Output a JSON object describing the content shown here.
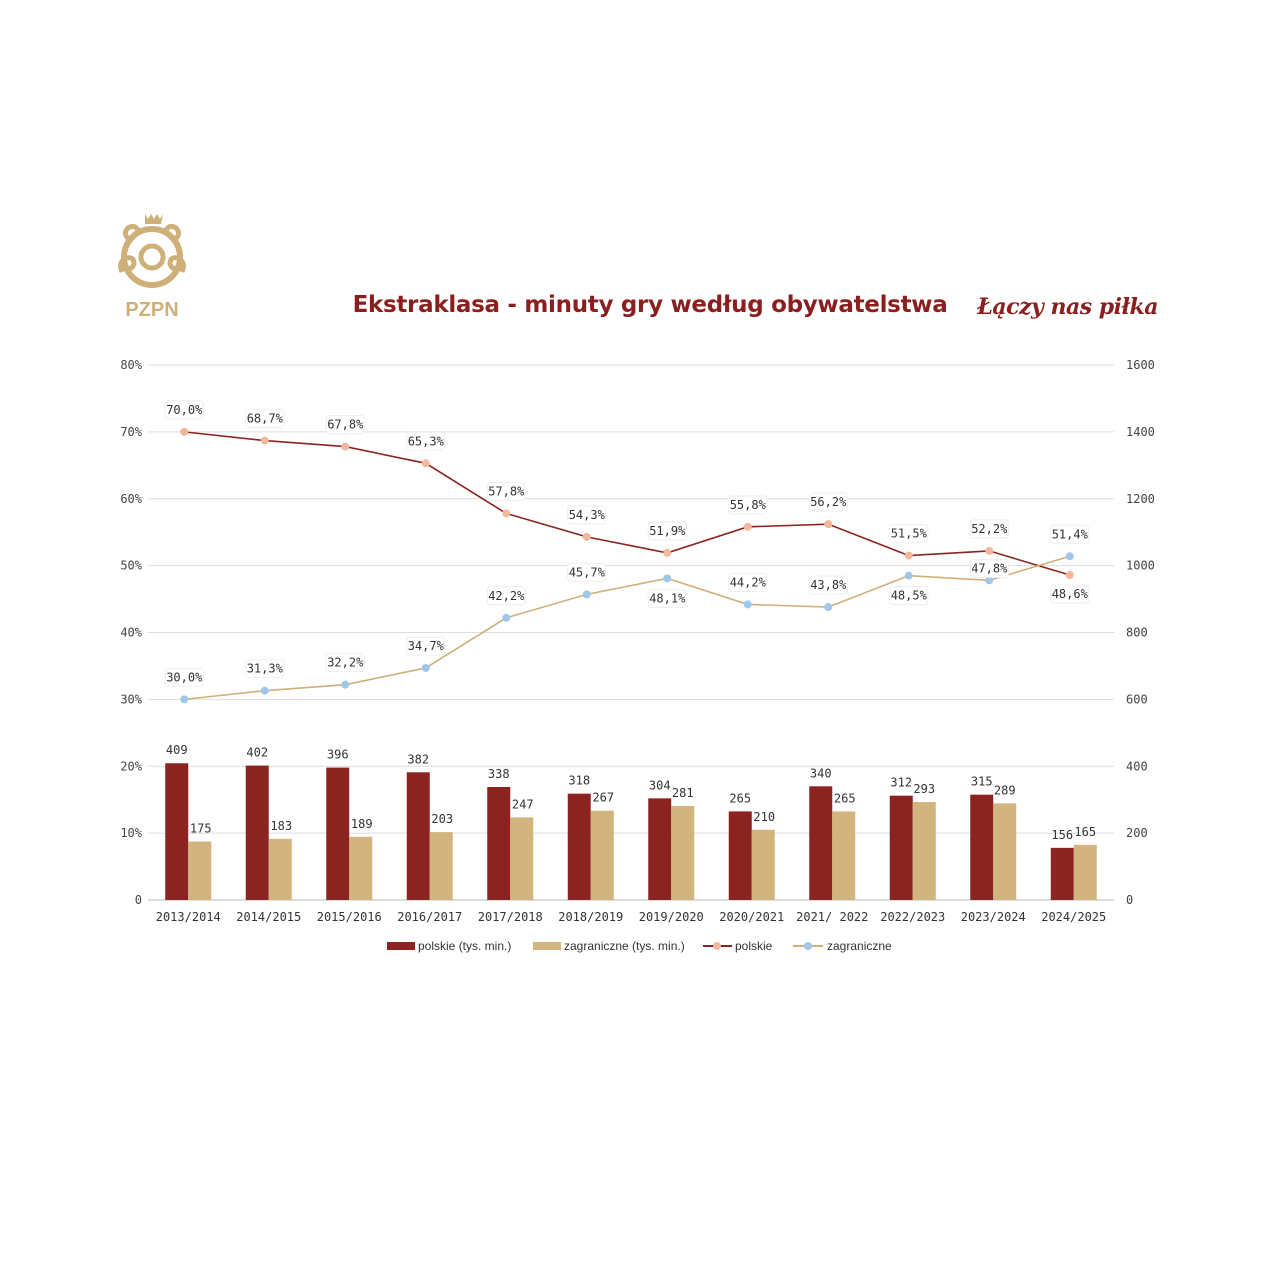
{
  "header": {
    "logo_text": "PZPN",
    "title": "Ekstraklasa - minuty gry według obywatelstwa",
    "tagline": "Łączy nas piłka"
  },
  "colors": {
    "brand_red": "#8b1f1f",
    "gold": "#cfb079",
    "polskie_bar": "#8b2420",
    "zagraniczne_bar": "#d2b47f",
    "polskie_line": "#8b2420",
    "polskie_marker": "#f2b79c",
    "zagraniczne_line": "#cfb079",
    "zagraniczne_marker": "#9fc7ea",
    "grid": "#dddddd"
  },
  "chart_data": {
    "type": "bar+line",
    "title": "Ekstraklasa - minuty gry według obywatelstwa",
    "categories": [
      "2013/2014",
      "2014/2015",
      "2015/2016",
      "2016/2017",
      "2017/2018",
      "2018/2019",
      "2019/2020",
      "2020/2021",
      "2021/ 2022",
      "2022/2023",
      "2023/2024",
      "2024/2025"
    ],
    "left_axis": {
      "ylim": [
        0,
        80
      ],
      "ticks": [
        "0",
        "10%",
        "20%",
        "30%",
        "40%",
        "50%",
        "60%",
        "70%",
        "80%"
      ]
    },
    "right_axis": {
      "ylim": [
        0,
        1600
      ],
      "ticks": [
        "0",
        "200",
        "400",
        "600",
        "800",
        "1000",
        "1200",
        "1400",
        "1600"
      ]
    },
    "grid": true,
    "legend_position": "bottom",
    "bar_series": [
      {
        "name": "polskie (tys. min.)",
        "axis": "right",
        "values": [
          409,
          402,
          396,
          382,
          338,
          318,
          304,
          265,
          340,
          312,
          315,
          156
        ]
      },
      {
        "name": "zagraniczne (tys. min.)",
        "axis": "right",
        "values": [
          175,
          183,
          189,
          203,
          247,
          267,
          281,
          210,
          265,
          293,
          289,
          165
        ]
      }
    ],
    "line_series": [
      {
        "name": "polskie",
        "axis": "left",
        "values": [
          70.0,
          68.7,
          67.8,
          65.3,
          57.8,
          54.3,
          51.9,
          55.8,
          56.2,
          51.5,
          52.2,
          48.6
        ],
        "labels": [
          "70,0%",
          "68,7%",
          "67,8%",
          "65,3%",
          "57,8%",
          "54,3%",
          "51,9%",
          "55,8%",
          "56,2%",
          "51,5%",
          "52,2%",
          "48,6%"
        ]
      },
      {
        "name": "zagraniczne",
        "axis": "left",
        "values": [
          30.0,
          31.3,
          32.2,
          34.7,
          42.2,
          45.7,
          48.1,
          44.2,
          43.8,
          48.5,
          47.8,
          51.4
        ],
        "labels": [
          "30,0%",
          "31,3%",
          "32,2%",
          "34,7%",
          "42,2%",
          "45,7%",
          "48,1%",
          "44,2%",
          "43,8%",
          "48,5%",
          "47,8%",
          "51,4%"
        ]
      }
    ]
  }
}
